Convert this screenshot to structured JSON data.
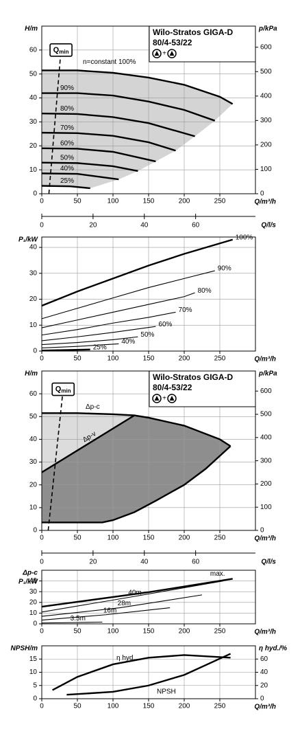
{
  "chart_data": [
    {
      "type": "curve-field",
      "title": "Wilo-Stratos GIGA-D",
      "subtitle": "80/4-53/22",
      "symbol_join": "+",
      "xlabel": "Q/m³/h",
      "ylabel": "H/m",
      "y2label": "p/kPa",
      "x2label": "Q/l/s",
      "xlim": [
        0,
        300
      ],
      "xticks": [
        0,
        50,
        100,
        150,
        200,
        250
      ],
      "ylim": [
        0,
        70
      ],
      "yticks": [
        0,
        10,
        20,
        30,
        40,
        50,
        60
      ],
      "y2lim": [
        0,
        686.5
      ],
      "y2ticks": [
        0,
        100,
        200,
        300,
        400,
        500,
        600
      ],
      "x2lim": [
        0,
        83.33
      ],
      "x2ticks": [
        0,
        20,
        40,
        60
      ],
      "grid": true,
      "qmin": {
        "label": "Q",
        "subscript": "min",
        "x": [
          10,
          27
        ],
        "y": [
          0,
          60
        ]
      },
      "series": [
        {
          "name": "n=constant 100%",
          "color": "#000000",
          "x": [
            0,
            50,
            100,
            150,
            200,
            250,
            268
          ],
          "values": [
            51.5,
            51.5,
            50.5,
            48.5,
            45.5,
            40.5,
            37.5
          ]
        },
        {
          "name": "90%",
          "color": "#000000",
          "x": [
            0,
            50,
            100,
            150,
            200,
            243
          ],
          "values": [
            42,
            42,
            41,
            38.5,
            35,
            30.5
          ]
        },
        {
          "name": "80%",
          "color": "#000000",
          "x": [
            0,
            50,
            100,
            150,
            215
          ],
          "values": [
            33.5,
            33.3,
            32,
            29.5,
            24
          ]
        },
        {
          "name": "70%",
          "color": "#000000",
          "x": [
            0,
            50,
            100,
            150,
            188
          ],
          "values": [
            25.5,
            25.3,
            24.2,
            21.5,
            18
          ]
        },
        {
          "name": "60%",
          "color": "#000000",
          "x": [
            0,
            50,
            100,
            160
          ],
          "values": [
            19,
            18.8,
            17.5,
            13.5
          ]
        },
        {
          "name": "50%",
          "color": "#000000",
          "x": [
            0,
            50,
            100,
            135
          ],
          "values": [
            13,
            12.8,
            11.5,
            9.5
          ]
        },
        {
          "name": "40%",
          "color": "#000000",
          "x": [
            0,
            50,
            108
          ],
          "values": [
            8.5,
            8.3,
            6
          ]
        },
        {
          "name": "25%",
          "color": "#000000",
          "x": [
            0,
            40,
            68
          ],
          "values": [
            3.3,
            3.1,
            2.3
          ]
        }
      ]
    },
    {
      "type": "line",
      "xlabel": "Q/m³/h",
      "ylabel": "P₁/kW",
      "xlim": [
        0,
        300
      ],
      "xticks": [
        0,
        50,
        100,
        150,
        200,
        250
      ],
      "ylim": [
        0,
        44
      ],
      "yticks": [
        0,
        10,
        20,
        30,
        40
      ],
      "grid": true,
      "series": [
        {
          "name": "100%",
          "color": "#000000",
          "x": [
            0,
            50,
            100,
            150,
            200,
            268
          ],
          "values": [
            17.5,
            23,
            28,
            33,
            37.5,
            43
          ]
        },
        {
          "name": "90%",
          "color": "#000000",
          "x": [
            0,
            50,
            100,
            150,
            200,
            243
          ],
          "values": [
            12.5,
            16.5,
            20.5,
            24.5,
            28,
            31
          ]
        },
        {
          "name": "80%",
          "color": "#000000",
          "x": [
            0,
            50,
            100,
            150,
            200,
            215
          ],
          "values": [
            9,
            12,
            15,
            18,
            21,
            22.5
          ]
        },
        {
          "name": "70%",
          "color": "#000000",
          "x": [
            0,
            50,
            100,
            150,
            188
          ],
          "values": [
            6.2,
            8.3,
            10.8,
            13,
            15
          ]
        },
        {
          "name": "60%",
          "color": "#000000",
          "x": [
            0,
            50,
            100,
            160
          ],
          "values": [
            4,
            5.5,
            7.2,
            9.5
          ]
        },
        {
          "name": "50%",
          "color": "#000000",
          "x": [
            0,
            50,
            100,
            135
          ],
          "values": [
            2.5,
            3.3,
            4.4,
            5.5
          ]
        },
        {
          "name": "40%",
          "color": "#000000",
          "x": [
            0,
            50,
            108
          ],
          "values": [
            1.2,
            1.8,
            2.8
          ]
        },
        {
          "name": "25%",
          "color": "#000000",
          "x": [
            0,
            68
          ],
          "values": [
            0.2,
            0.6
          ]
        }
      ]
    },
    {
      "type": "control-range",
      "title": "Wilo-Stratos GIGA-D",
      "subtitle": "80/4-53/22",
      "symbol_join": "+",
      "xlabel": "Q/m³/h",
      "ylabel": "H/m",
      "y2label": "p/kPa",
      "x2label": "Q/l/s",
      "xlim": [
        0,
        300
      ],
      "xticks": [
        0,
        50,
        100,
        150,
        200,
        250
      ],
      "ylim": [
        0,
        70
      ],
      "yticks": [
        0,
        10,
        20,
        30,
        40,
        50,
        60
      ],
      "y2lim": [
        0,
        686.5
      ],
      "y2ticks": [
        0,
        100,
        200,
        300,
        400,
        500,
        600
      ],
      "x2lim": [
        0,
        83.33
      ],
      "x2ticks": [
        0,
        20,
        40,
        60
      ],
      "grid": true,
      "qmin": {
        "label": "Q",
        "subscript": "min",
        "x": [
          9,
          30
        ],
        "y": [
          0,
          62
        ]
      },
      "series": [
        {
          "name": "Δp-c",
          "color": "#000000",
          "x": [
            0,
            50,
            100,
            130,
            150,
            200,
            250,
            265
          ],
          "values": [
            51.5,
            51.5,
            51,
            50.5,
            49.5,
            46,
            40,
            37
          ]
        },
        {
          "name": "Δp-v",
          "color": "#000000",
          "x": [
            0,
            130
          ],
          "values": [
            25.5,
            50.5
          ]
        },
        {
          "color": "#000000",
          "x": [
            0,
            85,
            100,
            130,
            160,
            200,
            230,
            265
          ],
          "values": [
            3.5,
            3.5,
            4.5,
            8,
            13,
            20,
            27,
            37
          ]
        }
      ]
    },
    {
      "type": "line",
      "xlabel": "Q/m³/h",
      "ylabel": "P₁/kW",
      "control_mode": "Δp-c",
      "xlim": [
        0,
        300
      ],
      "xticks": [
        0,
        50,
        100,
        150,
        200,
        250
      ],
      "ylim": [
        0,
        50
      ],
      "yticks": [
        0,
        10,
        20,
        30,
        40
      ],
      "grid": true,
      "series": [
        {
          "name": "max.",
          "color": "#000000",
          "x": [
            0,
            150,
            268
          ],
          "values": [
            16,
            29.5,
            42
          ]
        },
        {
          "name": "40m",
          "color": "#000000",
          "x": [
            0,
            125,
            255
          ],
          "values": [
            11,
            25,
            40
          ]
        },
        {
          "name": "28m",
          "color": "#000000",
          "x": [
            0,
            110,
            225
          ],
          "values": [
            7,
            15,
            27
          ]
        },
        {
          "name": "16m",
          "color": "#000000",
          "x": [
            0,
            90,
            180
          ],
          "values": [
            3.5,
            8.5,
            15
          ]
        },
        {
          "name": "3.5m",
          "color": "#000000",
          "x": [
            0,
            45,
            85
          ],
          "values": [
            0.8,
            1.2,
            1.6
          ]
        }
      ]
    },
    {
      "type": "line",
      "xlabel": "Q/m³/h",
      "ylabel": "NPSH/m",
      "y2label": "η hyd./%",
      "xlim": [
        0,
        300
      ],
      "xticks": [
        0,
        50,
        100,
        150,
        200,
        250
      ],
      "ylim": [
        0,
        20
      ],
      "yticks": [
        0,
        5,
        10,
        15
      ],
      "y2lim": [
        0,
        80
      ],
      "y2ticks": [
        0,
        20,
        40,
        60
      ],
      "grid": true,
      "series": [
        {
          "name": "η hyd.",
          "color": "#000000",
          "axis": "y2",
          "x": [
            15,
            50,
            100,
            150,
            200,
            265
          ],
          "values": [
            13,
            33,
            52,
            62,
            66,
            62
          ]
        },
        {
          "name": "NPSH",
          "color": "#000000",
          "x": [
            35,
            100,
            150,
            200,
            265
          ],
          "values": [
            1.5,
            2.6,
            5,
            9,
            17
          ]
        }
      ]
    }
  ]
}
